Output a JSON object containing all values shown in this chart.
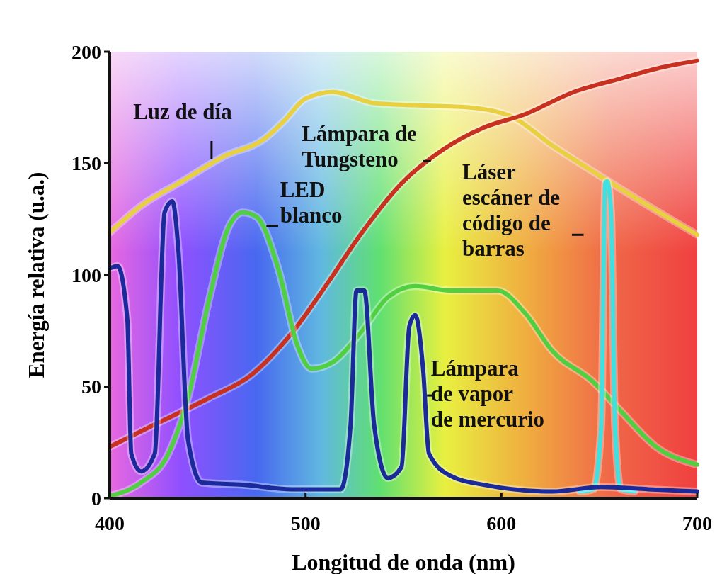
{
  "chart_data": {
    "type": "line",
    "xlabel": "Longitud de onda (nm)",
    "ylabel": "Energía relativa (u.a.)",
    "xlim": [
      400,
      700
    ],
    "ylim": [
      0,
      200
    ],
    "xticks": [
      400,
      500,
      600,
      700
    ],
    "yticks": [
      0,
      50,
      100,
      150,
      200
    ],
    "marker": "none",
    "line_style": "solid",
    "series": [
      {
        "name": "Luz de día",
        "color": "#e8d040",
        "x": [
          400,
          416,
          437,
          458,
          479,
          489,
          500,
          514,
          535,
          556,
          584,
          605,
          626,
          651,
          675,
          700
        ],
        "values": [
          119,
          131,
          142,
          153,
          161,
          169,
          179,
          182,
          177,
          176,
          175,
          171,
          158,
          144,
          131,
          118
        ]
      },
      {
        "name": "Lámpara de Tungsteno",
        "color": "#c83020",
        "x": [
          400,
          423,
          451,
          472,
          493,
          511,
          528,
          549,
          570,
          591,
          612,
          637,
          661,
          682,
          700
        ],
        "values": [
          23,
          33,
          45,
          55,
          74,
          96,
          118,
          141,
          156,
          166,
          172,
          182,
          188,
          193,
          196
        ]
      },
      {
        "name": "LED blanco",
        "color": "#50d040",
        "x": [
          400,
          416,
          430,
          440,
          451,
          461,
          468,
          475,
          486,
          496,
          503,
          514,
          528,
          542,
          556,
          574,
          598,
          612,
          626,
          647,
          661,
          679,
          700
        ],
        "values": [
          1,
          7,
          20,
          45,
          90,
          122,
          128,
          126,
          103,
          68,
          58,
          61,
          74,
          90,
          95,
          93,
          93,
          83,
          66,
          52,
          39,
          23,
          15
        ]
      },
      {
        "name": "Láser escáner de código de barras",
        "color": "#40e0e0",
        "x": [
          640,
          647,
          651,
          653,
          654,
          656,
          658,
          661,
          668
        ],
        "values": [
          3,
          4,
          33,
          141,
          142,
          128,
          33,
          4,
          3
        ]
      },
      {
        "name": "Lámpara de vapor de mercurio",
        "color": "#1a2a9a",
        "x": [
          400,
          404,
          409,
          411,
          416,
          423,
          428,
          432,
          435,
          440,
          447,
          468,
          493,
          518,
          523,
          526,
          530,
          535,
          542,
          549,
          553,
          556,
          560,
          563,
          574,
          591,
          626,
          651,
          675,
          700
        ],
        "values": [
          103,
          104,
          80,
          20,
          12,
          20,
          128,
          133,
          112,
          26,
          7,
          6,
          4,
          4,
          33,
          93,
          93,
          33,
          9,
          14,
          77,
          82,
          58,
          20,
          10,
          6,
          3,
          5,
          4,
          3
        ]
      }
    ]
  }
}
